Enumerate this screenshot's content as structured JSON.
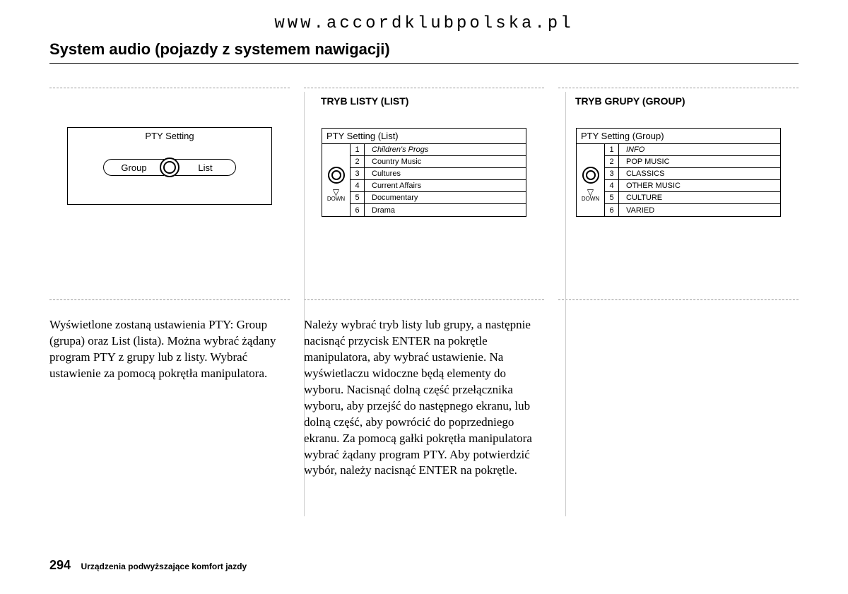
{
  "url": "www.accordklubpolska.pl",
  "title": "System audio (pojazdy z systemem nawigacji)",
  "col1": {
    "box_title": "PTY Setting",
    "toggle_left": "Group",
    "toggle_right": "List",
    "text": "Wyświetlone zostaną ustawienia PTY: Group (grupa) oraz List (lista). Można wybrać żądany program PTY z grupy lub z listy. Wybrać ustawienie za pomocą pokrętła manipulatora."
  },
  "col2": {
    "label": "TRYB LISTY (LIST)",
    "box_title": "PTY Setting (List)",
    "items": [
      {
        "n": "1",
        "t": "Children's Progs",
        "sel": true
      },
      {
        "n": "2",
        "t": "Country Music",
        "sel": false
      },
      {
        "n": "3",
        "t": "Cultures",
        "sel": false
      },
      {
        "n": "4",
        "t": "Current Affairs",
        "sel": false
      },
      {
        "n": "5",
        "t": "Documentary",
        "sel": false
      },
      {
        "n": "6",
        "t": "Drama",
        "sel": false
      }
    ],
    "down": "DOWN",
    "text": "Należy wybrać tryb listy lub grupy, a następnie nacisnąć przycisk ENTER na pokrętle manipulatora, aby wybrać ustawienie. Na wyświetlaczu widoczne będą elementy do wyboru. Nacisnąć dolną część przełącznika wyboru, aby przejść do następnego ekranu, lub dolną część, aby powrócić do poprzedniego ekranu. Za pomocą gałki pokrętła manipulatora wybrać żądany program PTY. Aby potwierdzić wybór, należy nacisnąć ENTER na pokrętle."
  },
  "col3": {
    "label": "TRYB GRUPY (GROUP)",
    "box_title": "PTY Setting (Group)",
    "items": [
      {
        "n": "1",
        "t": "INFO",
        "sel": true
      },
      {
        "n": "2",
        "t": "POP MUSIC",
        "sel": false
      },
      {
        "n": "3",
        "t": "CLASSICS",
        "sel": false
      },
      {
        "n": "4",
        "t": "OTHER MUSIC",
        "sel": false
      },
      {
        "n": "5",
        "t": "CULTURE",
        "sel": false
      },
      {
        "n": "6",
        "t": "VARIED",
        "sel": false
      }
    ],
    "down": "DOWN"
  },
  "footer": {
    "page": "294",
    "text": "Urządzenia podwyższające komfort jazdy"
  }
}
